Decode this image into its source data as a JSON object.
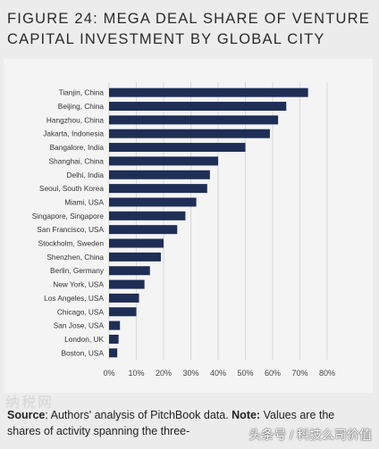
{
  "title_line1": "FIGURE 24: MEGA DEAL SHARE OF VENTURE",
  "title_line2": "CAPITAL INVESTMENT BY GLOBAL CITY",
  "source_label": "Source",
  "source_text_1": ": Authors' analysis of PitchBook data. ",
  "note_label": "Note:",
  "source_text_2": " Values are the",
  "source_line2": "shares of activity spanning the three-",
  "watermark": "头条号 / 科技么司价值",
  "ghost_mark": "纳税网",
  "colors": {
    "bar": "#1f2e55",
    "grid": "#d8d8d8",
    "axis_text": "#444444"
  },
  "chart_data": {
    "type": "bar",
    "orientation": "horizontal",
    "categories": [
      "Tianjin, China",
      "Beijing, China",
      "Hangzhou, China",
      "Jakarta, Indonesia",
      "Bangalore, India",
      "Shanghai, China",
      "Delhi, India",
      "Seoul, South Korea",
      "Miami, USA",
      "Singapore, Singapore",
      "San Francisco, USA",
      "Stockholm, Sweden",
      "Shenzhen, China",
      "Berlin, Germany",
      "New York, USA",
      "Los Angeles, USA",
      "Chicago, USA",
      "San Jose, USA",
      "London, UK",
      "Boston, USA"
    ],
    "values": [
      73,
      65,
      62,
      59,
      50,
      40,
      37,
      36,
      32,
      28,
      25,
      20,
      19,
      15,
      13,
      11,
      10,
      4,
      3.5,
      3
    ],
    "xlim": [
      0,
      80
    ],
    "xticks": [
      "0%",
      "10%",
      "20%",
      "30%",
      "40%",
      "50%",
      "60%",
      "70%",
      "80%"
    ],
    "grid": true
  }
}
